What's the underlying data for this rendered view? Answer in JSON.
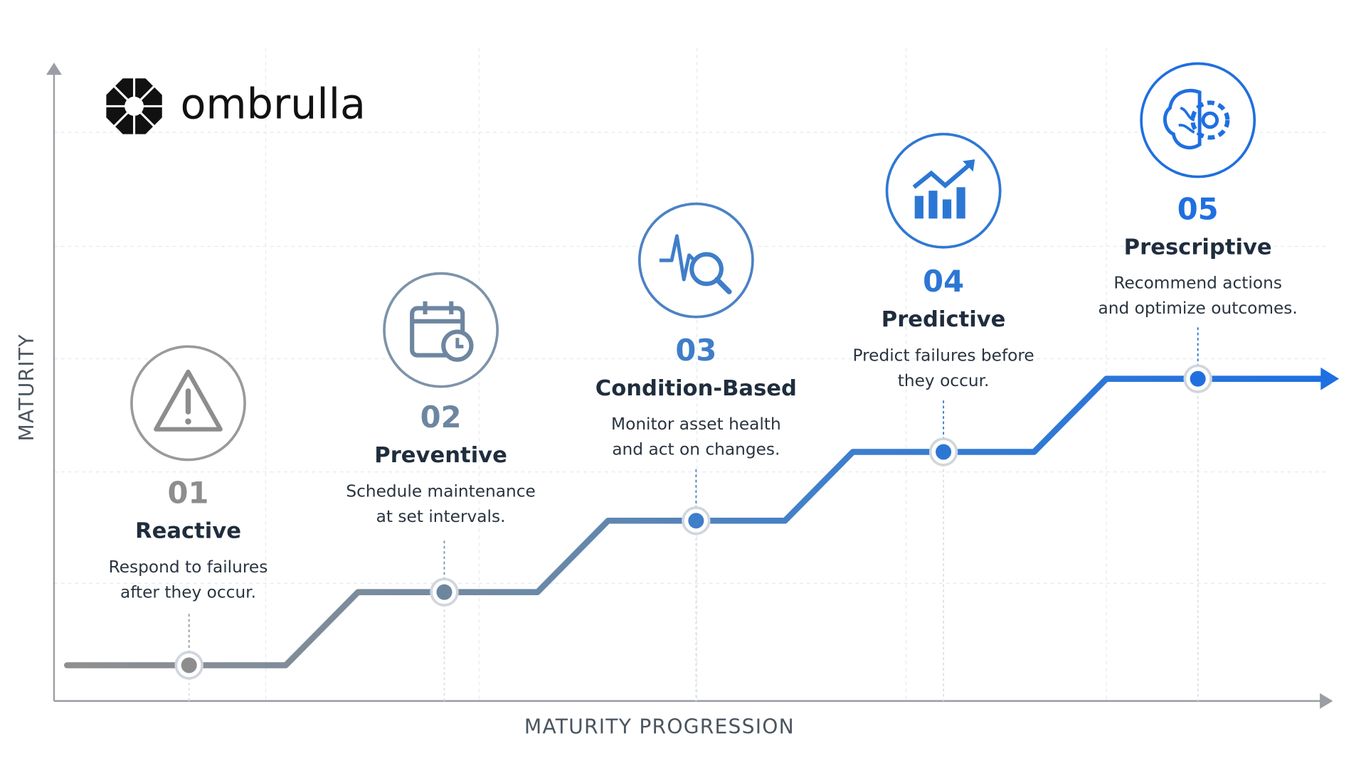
{
  "logo": {
    "text": "ombrulla"
  },
  "axes": {
    "y_label": "MATURITY",
    "x_label": "MATURITY PROGRESSION"
  },
  "stages": [
    {
      "number": "01",
      "title": "Reactive",
      "description": [
        "Respond to failures",
        "after they occur."
      ]
    },
    {
      "number": "02",
      "title": "Preventive",
      "description": [
        "Schedule maintenance",
        "at set intervals."
      ]
    },
    {
      "number": "03",
      "title": "Condition-Based",
      "description": [
        "Monitor asset health",
        "and act on changes."
      ]
    },
    {
      "number": "04",
      "title": "Predictive",
      "description": [
        "Predict failures before",
        "they occur."
      ]
    },
    {
      "number": "05",
      "title": "Prescriptive",
      "description": [
        "Recommend actions",
        "and optimize outcomes."
      ]
    }
  ]
}
